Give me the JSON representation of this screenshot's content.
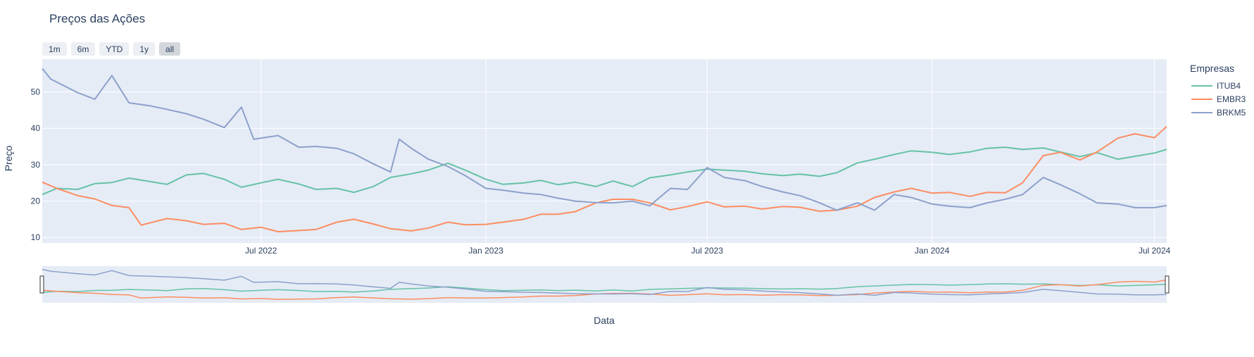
{
  "chart_data": {
    "type": "line",
    "title": "Preços das Ações",
    "xlabel": "Data",
    "ylabel": "Preço",
    "x_range": [
      "2022-01-03",
      "2024-07-11"
    ],
    "ylim": [
      8.5,
      59
    ],
    "y_ticks": [
      10,
      20,
      30,
      40,
      50
    ],
    "x_ticks": [
      {
        "date": "2022-07-01",
        "label": "Jul 2022"
      },
      {
        "date": "2023-01-01",
        "label": "Jan 2023"
      },
      {
        "date": "2023-07-01",
        "label": "Jul 2023"
      },
      {
        "date": "2024-01-01",
        "label": "Jan 2024"
      },
      {
        "date": "2024-07-01",
        "label": "Jul 2024"
      }
    ],
    "grid": true,
    "legend_title": "Empresas",
    "legend_position": "right",
    "range_selector": [
      {
        "label": "1m",
        "active": false
      },
      {
        "label": "6m",
        "active": false
      },
      {
        "label": "YTD",
        "active": false
      },
      {
        "label": "1y",
        "active": false
      },
      {
        "label": "all",
        "active": true
      }
    ],
    "rangeslider": true,
    "series": [
      {
        "name": "ITUB4",
        "color": "#66c2a5",
        "points": [
          [
            "2022-01-03",
            21.8
          ],
          [
            "2022-01-15",
            23.5
          ],
          [
            "2022-02-01",
            23.2
          ],
          [
            "2022-02-15",
            24.8
          ],
          [
            "2022-03-01",
            25.1
          ],
          [
            "2022-03-15",
            26.3
          ],
          [
            "2022-04-01",
            25.4
          ],
          [
            "2022-04-15",
            24.6
          ],
          [
            "2022-05-01",
            27.2
          ],
          [
            "2022-05-15",
            27.6
          ],
          [
            "2022-06-01",
            26.0
          ],
          [
            "2022-06-15",
            23.8
          ],
          [
            "2022-07-01",
            25.0
          ],
          [
            "2022-07-15",
            26.0
          ],
          [
            "2022-08-01",
            24.7
          ],
          [
            "2022-08-15",
            23.2
          ],
          [
            "2022-09-01",
            23.5
          ],
          [
            "2022-09-15",
            22.4
          ],
          [
            "2022-10-01",
            24.0
          ],
          [
            "2022-10-15",
            26.5
          ],
          [
            "2022-11-01",
            27.5
          ],
          [
            "2022-11-15",
            28.5
          ],
          [
            "2022-12-01",
            30.4
          ],
          [
            "2022-12-15",
            28.5
          ],
          [
            "2023-01-01",
            26.0
          ],
          [
            "2023-01-15",
            24.6
          ],
          [
            "2023-02-01",
            25.0
          ],
          [
            "2023-02-15",
            25.7
          ],
          [
            "2023-03-01",
            24.5
          ],
          [
            "2023-03-15",
            25.2
          ],
          [
            "2023-04-01",
            24.0
          ],
          [
            "2023-04-15",
            25.5
          ],
          [
            "2023-05-01",
            24.0
          ],
          [
            "2023-05-15",
            26.4
          ],
          [
            "2023-06-01",
            27.2
          ],
          [
            "2023-06-15",
            28.0
          ],
          [
            "2023-07-01",
            28.8
          ],
          [
            "2023-07-15",
            28.5
          ],
          [
            "2023-08-01",
            28.2
          ],
          [
            "2023-08-15",
            27.5
          ],
          [
            "2023-09-01",
            27.0
          ],
          [
            "2023-09-15",
            27.4
          ],
          [
            "2023-10-01",
            26.8
          ],
          [
            "2023-10-15",
            27.8
          ],
          [
            "2023-11-01",
            30.5
          ],
          [
            "2023-11-15",
            31.5
          ],
          [
            "2023-12-01",
            32.8
          ],
          [
            "2023-12-15",
            33.8
          ],
          [
            "2024-01-01",
            33.4
          ],
          [
            "2024-01-15",
            32.8
          ],
          [
            "2024-02-01",
            33.5
          ],
          [
            "2024-02-15",
            34.5
          ],
          [
            "2024-03-01",
            34.8
          ],
          [
            "2024-03-15",
            34.2
          ],
          [
            "2024-04-01",
            34.6
          ],
          [
            "2024-04-15",
            33.5
          ],
          [
            "2024-05-01",
            32.2
          ],
          [
            "2024-05-15",
            33.3
          ],
          [
            "2024-06-01",
            31.5
          ],
          [
            "2024-06-15",
            32.3
          ],
          [
            "2024-07-01",
            33.2
          ],
          [
            "2024-07-11",
            34.2
          ]
        ]
      },
      {
        "name": "EMBR3",
        "color": "#fc8d62",
        "points": [
          [
            "2022-01-03",
            25.2
          ],
          [
            "2022-01-15",
            23.5
          ],
          [
            "2022-02-01",
            21.5
          ],
          [
            "2022-02-15",
            20.6
          ],
          [
            "2022-03-01",
            18.8
          ],
          [
            "2022-03-15",
            18.2
          ],
          [
            "2022-03-25",
            13.4
          ],
          [
            "2022-04-15",
            15.2
          ],
          [
            "2022-05-01",
            14.6
          ],
          [
            "2022-05-15",
            13.6
          ],
          [
            "2022-06-01",
            13.9
          ],
          [
            "2022-06-15",
            12.2
          ],
          [
            "2022-07-01",
            12.8
          ],
          [
            "2022-07-15",
            11.6
          ],
          [
            "2022-08-01",
            11.9
          ],
          [
            "2022-08-15",
            12.2
          ],
          [
            "2022-09-01",
            14.2
          ],
          [
            "2022-09-15",
            15.0
          ],
          [
            "2022-10-01",
            13.7
          ],
          [
            "2022-10-15",
            12.4
          ],
          [
            "2022-11-01",
            11.8
          ],
          [
            "2022-11-15",
            12.6
          ],
          [
            "2022-12-01",
            14.2
          ],
          [
            "2022-12-15",
            13.5
          ],
          [
            "2023-01-01",
            13.6
          ],
          [
            "2023-01-15",
            14.2
          ],
          [
            "2023-02-01",
            15.0
          ],
          [
            "2023-02-15",
            16.4
          ],
          [
            "2023-03-01",
            16.4
          ],
          [
            "2023-03-15",
            17.1
          ],
          [
            "2023-04-01",
            19.5
          ],
          [
            "2023-04-15",
            20.5
          ],
          [
            "2023-05-01",
            20.5
          ],
          [
            "2023-05-15",
            19.5
          ],
          [
            "2023-06-01",
            17.6
          ],
          [
            "2023-06-15",
            18.5
          ],
          [
            "2023-07-01",
            19.8
          ],
          [
            "2023-07-15",
            18.4
          ],
          [
            "2023-08-01",
            18.6
          ],
          [
            "2023-08-15",
            17.8
          ],
          [
            "2023-09-01",
            18.5
          ],
          [
            "2023-09-15",
            18.3
          ],
          [
            "2023-10-01",
            17.2
          ],
          [
            "2023-10-15",
            17.5
          ],
          [
            "2023-11-01",
            18.6
          ],
          [
            "2023-11-15",
            21.0
          ],
          [
            "2023-12-01",
            22.5
          ],
          [
            "2023-12-15",
            23.5
          ],
          [
            "2024-01-01",
            22.2
          ],
          [
            "2024-01-15",
            22.4
          ],
          [
            "2024-02-01",
            21.3
          ],
          [
            "2024-02-15",
            22.4
          ],
          [
            "2024-03-01",
            22.3
          ],
          [
            "2024-03-15",
            25.0
          ],
          [
            "2024-04-01",
            32.5
          ],
          [
            "2024-04-15",
            33.4
          ],
          [
            "2024-05-01",
            31.3
          ],
          [
            "2024-05-15",
            33.5
          ],
          [
            "2024-06-01",
            37.3
          ],
          [
            "2024-06-15",
            38.5
          ],
          [
            "2024-07-01",
            37.4
          ],
          [
            "2024-07-11",
            40.5
          ]
        ]
      },
      {
        "name": "BRKM5",
        "color": "#8da0cb",
        "points": [
          [
            "2022-01-03",
            56.4
          ],
          [
            "2022-01-10",
            53.5
          ],
          [
            "2022-02-01",
            49.8
          ],
          [
            "2022-02-15",
            48.0
          ],
          [
            "2022-03-01",
            54.5
          ],
          [
            "2022-03-15",
            47.0
          ],
          [
            "2022-04-01",
            46.2
          ],
          [
            "2022-04-15",
            45.2
          ],
          [
            "2022-05-01",
            44.0
          ],
          [
            "2022-05-15",
            42.5
          ],
          [
            "2022-06-01",
            40.2
          ],
          [
            "2022-06-15",
            45.8
          ],
          [
            "2022-06-25",
            37.0
          ],
          [
            "2022-07-15",
            38.0
          ],
          [
            "2022-08-01",
            34.8
          ],
          [
            "2022-08-15",
            35.0
          ],
          [
            "2022-09-01",
            34.5
          ],
          [
            "2022-09-15",
            33.0
          ],
          [
            "2022-10-01",
            30.2
          ],
          [
            "2022-10-15",
            28.0
          ],
          [
            "2022-10-22",
            37.0
          ],
          [
            "2022-11-01",
            34.5
          ],
          [
            "2022-11-15",
            31.5
          ],
          [
            "2022-12-01",
            29.5
          ],
          [
            "2022-12-15",
            27.0
          ],
          [
            "2023-01-01",
            23.5
          ],
          [
            "2023-01-15",
            23.0
          ],
          [
            "2023-02-01",
            22.2
          ],
          [
            "2023-02-15",
            21.8
          ],
          [
            "2023-03-01",
            20.8
          ],
          [
            "2023-03-15",
            20.0
          ],
          [
            "2023-04-01",
            19.6
          ],
          [
            "2023-04-15",
            19.5
          ],
          [
            "2023-05-01",
            20.0
          ],
          [
            "2023-05-15",
            18.7
          ],
          [
            "2023-06-01",
            23.5
          ],
          [
            "2023-06-15",
            23.2
          ],
          [
            "2023-07-01",
            29.2
          ],
          [
            "2023-07-15",
            26.5
          ],
          [
            "2023-08-01",
            25.6
          ],
          [
            "2023-08-15",
            24.0
          ],
          [
            "2023-09-01",
            22.5
          ],
          [
            "2023-09-15",
            21.5
          ],
          [
            "2023-10-01",
            19.5
          ],
          [
            "2023-10-15",
            17.5
          ],
          [
            "2023-11-01",
            19.5
          ],
          [
            "2023-11-15",
            17.5
          ],
          [
            "2023-12-01",
            21.8
          ],
          [
            "2023-12-15",
            21.0
          ],
          [
            "2024-01-01",
            19.2
          ],
          [
            "2024-01-15",
            18.6
          ],
          [
            "2024-02-01",
            18.2
          ],
          [
            "2024-02-15",
            19.5
          ],
          [
            "2024-03-01",
            20.5
          ],
          [
            "2024-03-15",
            21.8
          ],
          [
            "2024-04-01",
            26.5
          ],
          [
            "2024-04-15",
            24.5
          ],
          [
            "2024-05-01",
            22.0
          ],
          [
            "2024-05-15",
            19.5
          ],
          [
            "2024-06-01",
            19.2
          ],
          [
            "2024-06-15",
            18.2
          ],
          [
            "2024-07-01",
            18.2
          ],
          [
            "2024-07-11",
            18.8
          ]
        ]
      }
    ]
  }
}
